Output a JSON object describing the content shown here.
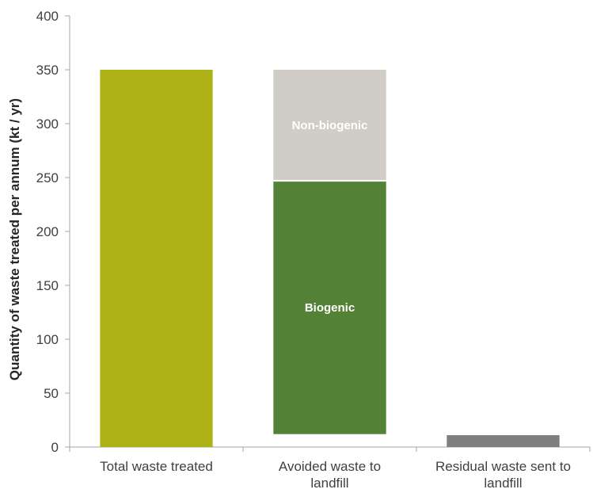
{
  "chart_data": {
    "type": "bar",
    "stacked": true,
    "categories": [
      [
        "Total waste treated"
      ],
      [
        "Avoided waste to",
        "landfill"
      ],
      [
        "Residual waste sent to",
        "landfill"
      ]
    ],
    "ylabel": "Quantity of waste treated per annum (kt / yr)",
    "xlabel": "",
    "ylim": [
      0,
      400
    ],
    "yticks": [
      0,
      50,
      100,
      150,
      200,
      250,
      300,
      350,
      400
    ],
    "grid": false,
    "bars": [
      {
        "category_index": 0,
        "segments": [
          {
            "from": 0,
            "to": 350,
            "color": "#adb317",
            "label": ""
          }
        ]
      },
      {
        "category_index": 1,
        "segments": [
          {
            "from": 12,
            "to": 247,
            "color": "#538135",
            "label": "Biogenic"
          },
          {
            "from": 247,
            "to": 350,
            "color": "#d0cdc6",
            "label": "Non-biogenic"
          }
        ]
      },
      {
        "category_index": 2,
        "segments": [
          {
            "from": 0,
            "to": 11,
            "color": "#7f7f7f",
            "label": ""
          }
        ]
      }
    ]
  }
}
